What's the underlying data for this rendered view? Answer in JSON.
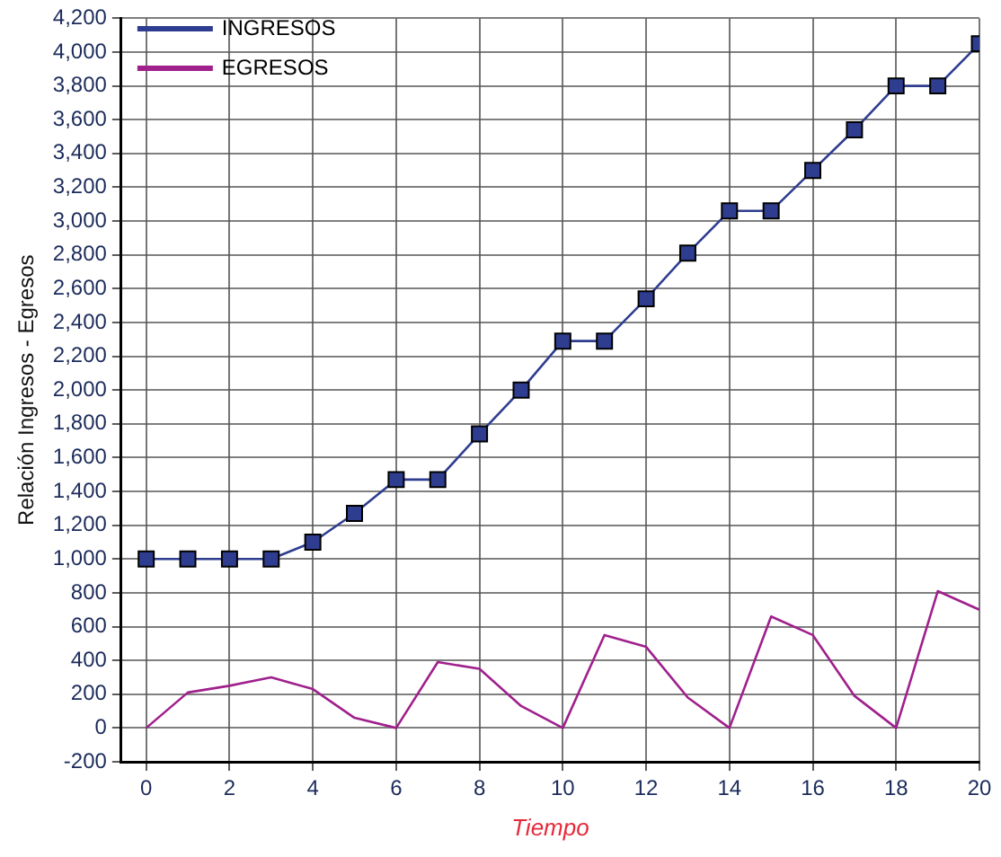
{
  "chart_data": {
    "type": "line",
    "xlabel": "Tiempo",
    "ylabel": "Relación Ingresos - Egresos",
    "x": [
      0,
      1,
      2,
      3,
      4,
      5,
      6,
      7,
      8,
      9,
      10,
      11,
      12,
      13,
      14,
      15,
      16,
      17,
      18,
      19,
      20
    ],
    "series": [
      {
        "name": "INGRESOS",
        "color": "#2e3d8f",
        "marker": "square",
        "values": [
          1000,
          1000,
          1000,
          1000,
          1100,
          1270,
          1470,
          1470,
          1740,
          2000,
          2290,
          2290,
          2540,
          2810,
          3060,
          3060,
          3300,
          3540,
          3800,
          3800,
          4050
        ]
      },
      {
        "name": "EGRESOS",
        "color": "#a0208c",
        "marker": "none",
        "values": [
          0,
          210,
          250,
          300,
          230,
          60,
          0,
          390,
          350,
          130,
          0,
          550,
          480,
          180,
          0,
          660,
          550,
          190,
          0,
          810,
          700
        ]
      }
    ],
    "xlim": [
      -0.6,
      20
    ],
    "xticks": [
      0,
      2,
      4,
      6,
      8,
      10,
      12,
      14,
      16,
      18,
      20
    ],
    "ylim": [
      -200,
      4200
    ],
    "yticks": [
      -200,
      0,
      200,
      400,
      600,
      800,
      {
        "value": 1000,
        "label": "1,000"
      },
      {
        "value": 1200,
        "label": "1,200"
      },
      {
        "value": 1400,
        "label": "1,400"
      },
      {
        "value": 1600,
        "label": "1,600"
      },
      {
        "value": 1800,
        "label": "1,800"
      },
      {
        "value": 2000,
        "label": "2,000"
      },
      {
        "value": 2200,
        "label": "2,200"
      },
      {
        "value": 2400,
        "label": "2,400"
      },
      {
        "value": 2600,
        "label": "2,600"
      },
      {
        "value": 2800,
        "label": "2,800"
      },
      {
        "value": 3000,
        "label": "3,000"
      },
      {
        "value": 3200,
        "label": "3,200"
      },
      {
        "value": 3400,
        "label": "3,400"
      },
      {
        "value": 3600,
        "label": "3,600"
      },
      {
        "value": 3800,
        "label": "3,800"
      },
      {
        "value": 4000,
        "label": "4,000"
      },
      {
        "value": 4200,
        "label": "4,200"
      }
    ],
    "grid": true,
    "line_style": "solid",
    "legend": "top left"
  }
}
